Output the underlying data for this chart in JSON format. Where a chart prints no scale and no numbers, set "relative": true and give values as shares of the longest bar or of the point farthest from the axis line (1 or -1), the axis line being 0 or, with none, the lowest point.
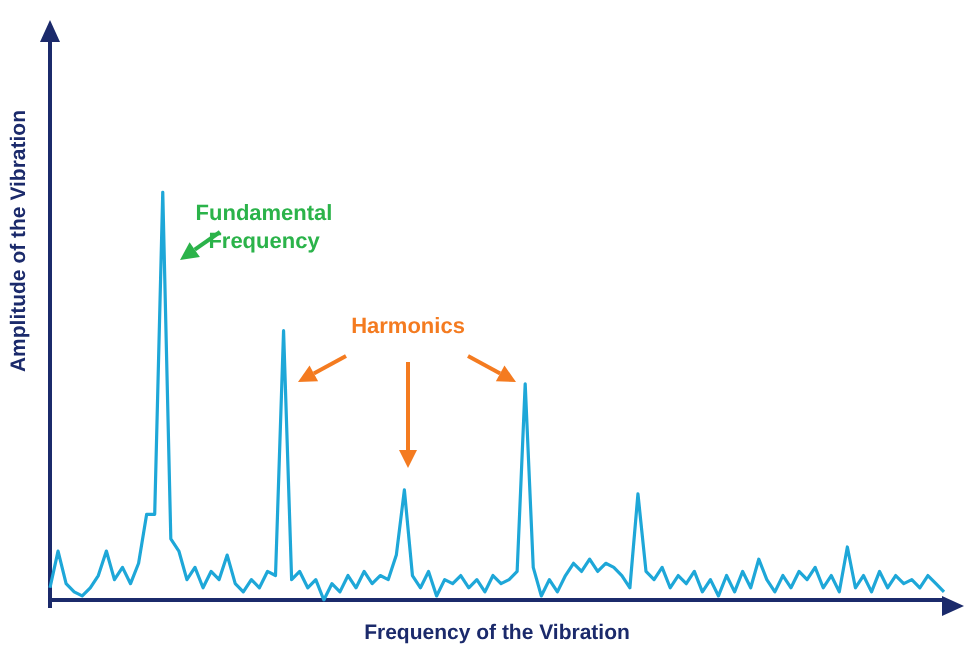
{
  "chart_data": {
    "type": "line",
    "relative": true,
    "xlabel": "Frequency of the Vibration",
    "ylabel": "Amplitude of the Vibration",
    "annotations": [
      "Fundamental\nFrequency",
      "Harmonics"
    ],
    "categories": [
      null,
      null,
      null,
      null,
      null,
      null,
      null,
      null,
      null,
      null,
      null,
      null,
      null,
      null,
      null,
      null,
      null,
      null,
      null,
      null,
      null,
      null,
      null,
      null,
      null,
      null,
      null,
      null,
      null,
      null,
      null,
      null,
      null,
      null,
      null,
      null,
      null,
      null,
      null,
      null,
      null,
      null,
      null,
      null,
      null,
      null,
      null,
      null,
      null,
      null,
      null,
      null,
      null,
      null,
      null,
      null,
      null,
      null,
      null,
      null,
      null,
      null,
      null,
      null,
      null,
      null,
      null,
      null,
      null,
      null,
      null,
      null,
      null,
      null,
      null,
      null,
      null,
      null,
      null,
      null,
      null,
      null,
      null,
      null,
      null,
      null,
      null,
      null,
      null,
      null,
      null,
      null,
      null,
      null,
      null,
      null,
      null,
      null,
      null,
      null,
      null,
      null,
      null,
      null,
      null,
      null,
      null,
      null,
      null,
      null,
      null,
      null
    ],
    "series": [
      {
        "color": "#1ea7d8",
        "values": [
          0.03,
          0.12,
          0.04,
          0.02,
          0.01,
          0.03,
          0.06,
          0.12,
          0.05,
          0.08,
          0.04,
          0.09,
          0.21,
          0.21,
          1,
          0.15,
          0.12,
          0.05,
          0.08,
          0.03,
          0.07,
          0.05,
          0.11,
          0.04,
          0.02,
          0.05,
          0.03,
          0.07,
          0.06,
          0.66,
          0.05,
          0.07,
          0.03,
          0.05,
          0.0,
          0.04,
          0.02,
          0.06,
          0.03,
          0.07,
          0.04,
          0.06,
          0.05,
          0.11,
          0.27,
          0.06,
          0.03,
          0.07,
          0.01,
          0.05,
          0.04,
          0.06,
          0.03,
          0.05,
          0.02,
          0.06,
          0.04,
          0.05,
          0.07,
          0.53,
          0.08,
          0.01,
          0.05,
          0.02,
          0.06,
          0.09,
          0.07,
          0.1,
          0.07,
          0.09,
          0.08,
          0.06,
          0.03,
          0.26,
          0.07,
          0.05,
          0.08,
          0.03,
          0.06,
          0.04,
          0.07,
          0.02,
          0.05,
          0.01,
          0.06,
          0.02,
          0.07,
          0.03,
          0.1,
          0.05,
          0.02,
          0.06,
          0.03,
          0.07,
          0.05,
          0.08,
          0.03,
          0.06,
          0.02,
          0.13,
          0.03,
          0.06,
          0.02,
          0.07,
          0.03,
          0.06,
          0.04,
          0.05,
          0.03,
          0.06,
          0.04,
          0.02
        ]
      }
    ]
  }
}
